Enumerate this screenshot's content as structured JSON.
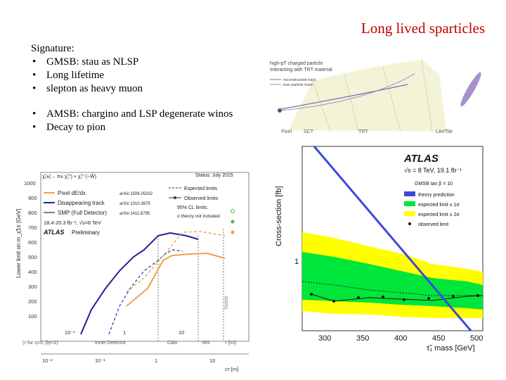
{
  "slide": {
    "title": "Long lived sparticles",
    "signature_label": "Signature:",
    "bullets_a": [
      "GMSB: stau as NLSP",
      "Long lifetime",
      "slepton as heavy muon"
    ],
    "bullets_b": [
      "AMSB: chargino and LSP degenerate winos",
      "Decay to pion"
    ]
  },
  "detector_figure": {
    "caption_lines": [
      "high-pT charged particle",
      "interacting with TRT material"
    ],
    "legend": [
      "reconstructed track",
      "true particle track"
    ],
    "labels": [
      "Pixel",
      "SCT",
      "TRT",
      "LAr/Tile"
    ]
  },
  "amsb_plot": {
    "process": "χ̃₁±(→ π± χ̃₁⁰) + χ̃₁⁰ (~W̃)",
    "status": "Status: July 2015",
    "ylabel": "Lower limit on m_χ̃1± [GeV]",
    "yticks": [
      "1000",
      "900",
      "800",
      "700",
      "600",
      "500",
      "400",
      "300",
      "200",
      "100"
    ],
    "legend": [
      {
        "label": "Pixel dE/dx",
        "ref": "arXiv:1506.05332"
      },
      {
        "label": "Disappearing track",
        "ref": "arXiv:1310.3675"
      },
      {
        "label": "SMP (Full Detector)",
        "ref": "arXiv:1411.6795"
      }
    ],
    "limits": [
      "Expected limits",
      "Observed limits"
    ],
    "cl_note": "95% CL limits.",
    "theory_note": "σ theory not included",
    "lumi": "18.4-20.3 fb⁻¹, √s=8 TeV",
    "atlas": "ATLAS",
    "atlas_sub": "Preliminary",
    "ns_ticks": [
      "10⁻¹",
      "1",
      "10"
    ],
    "regions": [
      "Inner Detector",
      "Calo",
      "MS"
    ],
    "ns_unit": "τ [ns]",
    "eta_note": "(τ for η=0, βγ=1)",
    "ct_ticks": [
      "10⁻²",
      "10⁻¹",
      "1",
      "10"
    ],
    "ct_unit": "cτ [m]",
    "stable": "Stable"
  },
  "stau_plot": {
    "atlas": "ATLAS",
    "energy": "√s = 8 TeV, 19.1 fb⁻¹",
    "model": "GMSB tan β = 10",
    "legend": [
      "theory prediction",
      "expected limit ± 1σ",
      "expected limit ± 2σ",
      "observed limit"
    ],
    "ylabel": "Cross-section [fb]",
    "ytick": "1",
    "xticks": [
      "300",
      "350",
      "400",
      "450",
      "500"
    ],
    "xlabel": "τ̃₁ mass [GeV]",
    "colors": {
      "theory": "#3d4ad8",
      "band1": "#00e63a",
      "band2": "#ffff00"
    }
  }
}
